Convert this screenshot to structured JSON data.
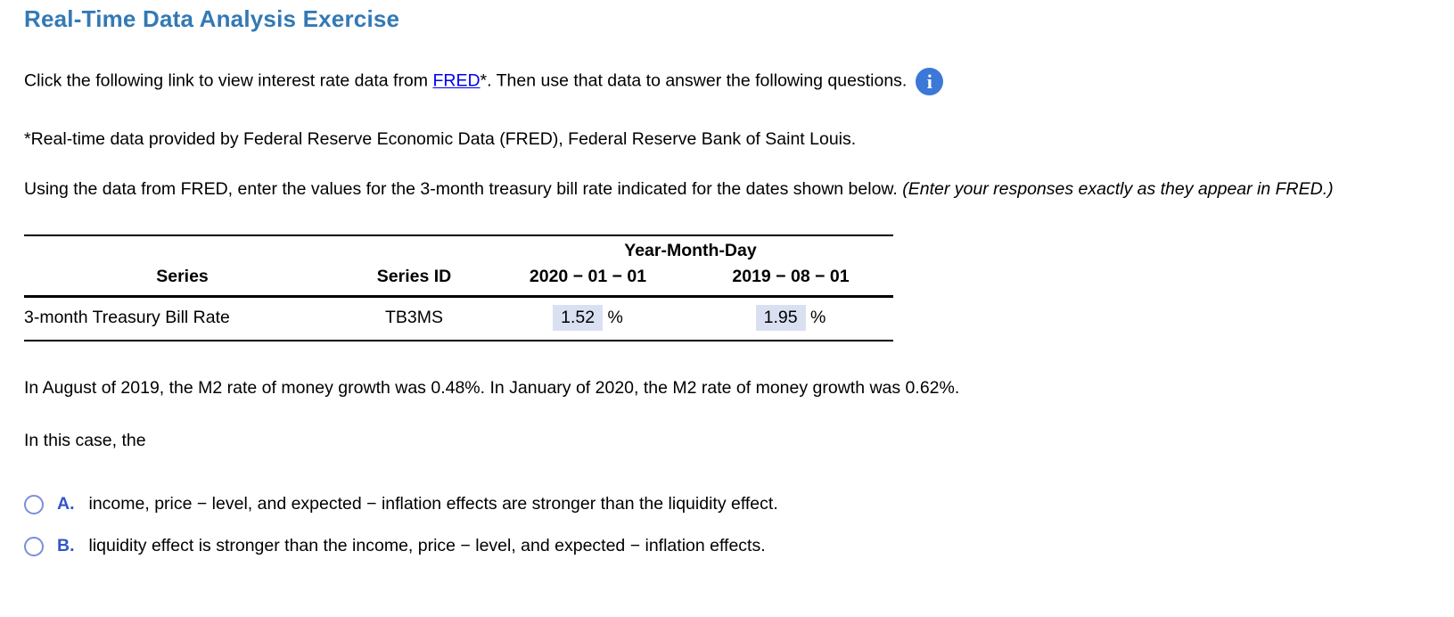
{
  "page": {
    "title": "Real-Time Data Analysis Exercise"
  },
  "intro": {
    "pre_link": "Click the following link to view interest rate data from ",
    "link_text": "FRED",
    "post_link": "*.  Then use that data to answer the following questions.",
    "info_icon": "i"
  },
  "footnote": "*Real-time data provided by Federal Reserve Economic Data (FRED), Federal Reserve Bank of Saint Louis.",
  "instructions": {
    "normal": "Using the data from FRED, enter the values for the 3-month treasury bill rate indicated for the dates shown below. ",
    "italic": "(Enter your responses exactly as they appear in FRED.)"
  },
  "table": {
    "group_header": "Year-Month-Day",
    "columns": {
      "series": "Series",
      "series_id": "Series ID",
      "date1": "2020 − 01 − 01",
      "date2": "2019 − 08 − 01"
    },
    "rows": [
      {
        "series": "3-month Treasury Bill Rate",
        "series_id": "TB3MS",
        "value_date1": "1.52",
        "value_date2": "1.95",
        "unit": "%"
      }
    ]
  },
  "m2_paragraph": "In August of 2019, the M2 rate of money growth was 0.48%. In January of 2020, the M2 rate of money growth was 0.62%.",
  "case_paragraph": "In this case, the",
  "choices": [
    {
      "letter": "A.",
      "text": "income, price − level, and expected − inflation effects are stronger than the liquidity effect."
    },
    {
      "letter": "B.",
      "text": "liquidity effect is stronger than the income, price − level, and expected − inflation effects."
    }
  ],
  "colors": {
    "title_blue": "#3379B5",
    "link_blue": "#0000EE",
    "info_icon_blue": "#3B78D8",
    "choice_letter_blue": "#3355CC",
    "radio_border_blue": "#7B8FD9",
    "answer_highlight": "#D9E0F2"
  }
}
